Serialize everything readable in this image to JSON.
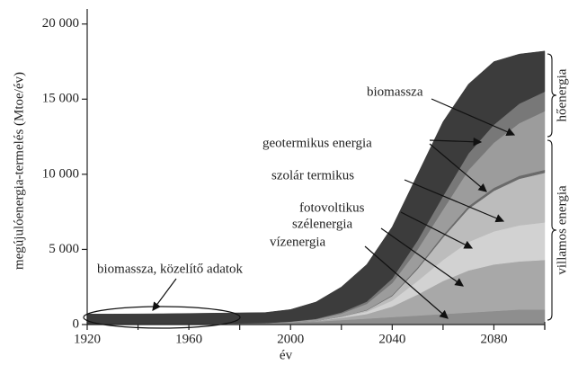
{
  "chart_data": {
    "type": "stacked_area",
    "y_label": "megújulóenergia-termelés (Mtoe/év)",
    "x_label": "év",
    "x": [
      1920,
      1930,
      1940,
      1950,
      1960,
      1970,
      1980,
      1990,
      2000,
      2010,
      2020,
      2030,
      2040,
      2050,
      2060,
      2070,
      2080,
      2090,
      2100
    ],
    "xlim": [
      1920,
      2100
    ],
    "xticks": [
      1920,
      1960,
      2000,
      2040,
      2080
    ],
    "xminor": [
      1940,
      1980,
      2020,
      2060,
      2100
    ],
    "ylim": [
      0,
      21000
    ],
    "yticks": [
      0,
      {
        "value": 5000,
        "label": "5 000"
      },
      {
        "value": 10000,
        "label": "10 000"
      },
      {
        "value": 15000,
        "label": "15 000"
      },
      {
        "value": 20000,
        "label": "20 000"
      }
    ],
    "series": [
      {
        "name": "vízenergia",
        "color": "#8e8e8e",
        "values": [
          0,
          0,
          10,
          20,
          40,
          60,
          80,
          100,
          150,
          200,
          300,
          400,
          500,
          600,
          700,
          800,
          900,
          1000,
          1000
        ]
      },
      {
        "name": "szélenergia",
        "color": "#a8a8a8",
        "values": [
          0,
          0,
          0,
          0,
          0,
          0,
          0,
          0,
          0,
          50,
          150,
          300,
          700,
          1400,
          2200,
          2800,
          3100,
          3200,
          3300
        ]
      },
      {
        "name": "fotovoltikus",
        "color": "#d2d2d2",
        "values": [
          0,
          0,
          0,
          0,
          0,
          0,
          0,
          0,
          0,
          0,
          50,
          150,
          400,
          900,
          1400,
          1900,
          2200,
          2400,
          2500
        ]
      },
      {
        "name": "szolár termikus",
        "color": "#bcbcbc",
        "values": [
          0,
          0,
          0,
          0,
          0,
          0,
          0,
          0,
          0,
          0,
          30,
          100,
          300,
          800,
          1500,
          2200,
          2700,
          3100,
          3300
        ]
      },
      {
        "name": "geotermikus energia",
        "color": "#6a6a6a",
        "values": [
          0,
          0,
          0,
          0,
          0,
          0,
          0,
          0,
          0,
          0,
          0,
          30,
          60,
          100,
          150,
          180,
          200,
          200,
          200
        ]
      },
      {
        "name": "biomassza",
        "color": "#9c9c9c",
        "values": [
          0,
          0,
          0,
          0,
          0,
          0,
          0,
          0,
          50,
          100,
          200,
          400,
          800,
          1200,
          1700,
          2400,
          3000,
          3500,
          3900
        ]
      },
      {
        "name": "geotermikus energia",
        "color": "#787878",
        "values": [
          0,
          0,
          0,
          0,
          0,
          0,
          0,
          0,
          0,
          30,
          80,
          150,
          300,
          600,
          900,
          1100,
          1200,
          1300,
          1300
        ]
      },
      {
        "name": "biomassza",
        "color": "#3c3c3c",
        "values": [
          700,
          700,
          700,
          700,
          700,
          700,
          700,
          700,
          800,
          1120,
          1690,
          2470,
          3440,
          4400,
          4950,
          4620,
          4200,
          3300,
          2700
        ]
      }
    ],
    "annotations": [
      "biomassza",
      "geotermikus energia",
      "szolár termikus",
      "fotovoltikus",
      "szélenergia",
      "vízenergia",
      "biomassza, közelítő adatok"
    ],
    "groups": [
      "hőenergia",
      "villamos energia"
    ]
  }
}
